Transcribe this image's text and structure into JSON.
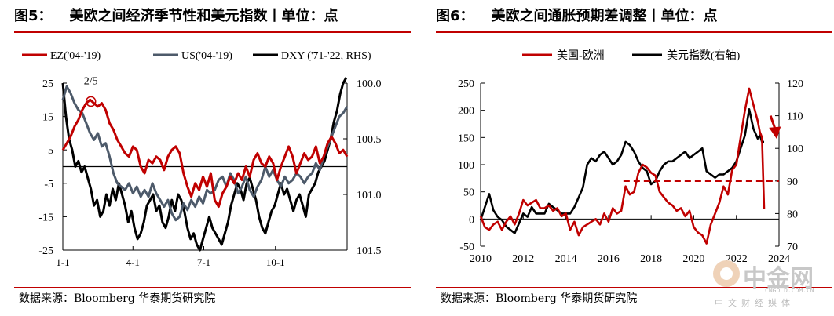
{
  "colors": {
    "red": "#c00000",
    "grey": "#4d5a6a",
    "black": "#000000"
  },
  "left": {
    "title_fig": "图5：",
    "title_text": "美欧之间经济季节性和美元指数丨单位：点",
    "source": "数据来源：Bloomberg  华泰期货研究院",
    "annotation": "2/5",
    "chart_data": {
      "type": "line",
      "legend": [
        "EZ('04-'19)",
        "US('04-'19)",
        "DXY ('71-'22, RHS)"
      ],
      "x_ticks": [
        "1-1",
        "4-1",
        "7-1",
        "10-1"
      ],
      "y_left": {
        "ticks": [
          "25",
          "15",
          "5",
          "-5",
          "-15",
          "-25"
        ],
        "range": [
          -25,
          25
        ]
      },
      "y_right": {
        "ticks": [
          "100.0",
          "100.5",
          "101.0",
          "101.5"
        ],
        "range": [
          100.0,
          101.5
        ],
        "inverted": true
      },
      "reference_line_y": 0,
      "series": [
        {
          "name": "EZ('04-'19)",
          "axis": "left",
          "color": "#c00000",
          "x": [
            0,
            5,
            10,
            15,
            20,
            25,
            30,
            35,
            40,
            45,
            50,
            55,
            60,
            65,
            70,
            75,
            80,
            85,
            90,
            95,
            100,
            105,
            110,
            115,
            120,
            125,
            130,
            135,
            140,
            145,
            150,
            155,
            160,
            165,
            170,
            175,
            180,
            185,
            190,
            195,
            200,
            205,
            210,
            215,
            220,
            225,
            230,
            235,
            240,
            245,
            250,
            255,
            260,
            265,
            270,
            275,
            280,
            285,
            290,
            295,
            300,
            305,
            310,
            315,
            320,
            325,
            330,
            335,
            340,
            345,
            350,
            355,
            360,
            365
          ],
          "y": [
            5,
            7,
            9,
            12,
            14,
            17,
            19,
            20,
            19,
            18,
            19,
            17,
            13,
            11,
            8,
            6,
            4,
            3,
            6,
            5,
            0,
            -2,
            2,
            1,
            3,
            2,
            -1,
            3,
            5,
            6,
            4,
            -2,
            -6,
            -9,
            -5,
            -7,
            -3,
            -6,
            -2,
            -10,
            -12,
            -8,
            -6,
            -3,
            -5,
            -2,
            -4,
            0,
            -3,
            2,
            4,
            1,
            0,
            3,
            1,
            -4,
            0,
            3,
            6,
            3,
            -2,
            1,
            4,
            2,
            3,
            6,
            1,
            3,
            7,
            9,
            7,
            4,
            5,
            3
          ]
        },
        {
          "name": "US('04-'19)",
          "axis": "left",
          "color": "#4d5a6a",
          "x": [
            0,
            5,
            10,
            15,
            20,
            25,
            30,
            35,
            40,
            45,
            50,
            55,
            60,
            65,
            70,
            75,
            80,
            85,
            90,
            95,
            100,
            105,
            110,
            115,
            120,
            125,
            130,
            135,
            140,
            145,
            150,
            155,
            160,
            165,
            170,
            175,
            180,
            185,
            190,
            195,
            200,
            205,
            210,
            215,
            220,
            225,
            230,
            235,
            240,
            245,
            250,
            255,
            260,
            265,
            270,
            275,
            280,
            285,
            290,
            295,
            300,
            305,
            310,
            315,
            320,
            325,
            330,
            335,
            340,
            345,
            350,
            355,
            360,
            365
          ],
          "y": [
            20,
            24,
            22,
            19,
            17,
            16,
            13,
            10,
            8,
            10,
            6,
            7,
            3,
            -2,
            -5,
            -6,
            -7,
            -5,
            -8,
            -6,
            -9,
            -7,
            -9,
            -5,
            -8,
            -10,
            -12,
            -10,
            -14,
            -16,
            -15,
            -11,
            -13,
            -10,
            -12,
            -9,
            -11,
            -7,
            -8,
            -7,
            -4,
            -3,
            -6,
            -2,
            -4,
            -8,
            -6,
            -3,
            -7,
            -9,
            -6,
            -4,
            0,
            -3,
            -1,
            -4,
            -6,
            -3,
            -5,
            -4,
            -2,
            -3,
            -5,
            -3,
            -2,
            1,
            -1,
            3,
            6,
            9,
            12,
            15,
            16,
            18
          ]
        },
        {
          "name": "DXY ('71-'22, RHS)",
          "axis": "right",
          "color": "#000000",
          "x": [
            0,
            4,
            8,
            12,
            16,
            20,
            24,
            28,
            32,
            36,
            40,
            44,
            48,
            52,
            56,
            60,
            64,
            68,
            72,
            76,
            80,
            84,
            88,
            92,
            96,
            100,
            104,
            108,
            112,
            116,
            120,
            124,
            128,
            132,
            136,
            140,
            144,
            148,
            152,
            156,
            160,
            164,
            168,
            172,
            176,
            180,
            184,
            188,
            192,
            196,
            200,
            204,
            208,
            212,
            216,
            220,
            224,
            228,
            232,
            236,
            240,
            244,
            248,
            252,
            256,
            260,
            264,
            268,
            272,
            276,
            280,
            284,
            288,
            292,
            296,
            300,
            304,
            308,
            312,
            316,
            320,
            324,
            328,
            332,
            336,
            340,
            344,
            348,
            352,
            356,
            360,
            364
          ],
          "y": [
            100.0,
            100.3,
            100.5,
            100.6,
            100.75,
            100.7,
            100.8,
            100.75,
            100.85,
            100.95,
            101.1,
            101.05,
            101.2,
            101.15,
            101.0,
            101.1,
            100.95,
            101.05,
            100.9,
            101.0,
            101.1,
            101.25,
            101.15,
            101.3,
            101.4,
            101.35,
            101.25,
            101.1,
            101.05,
            101.0,
            101.15,
            101.1,
            101.25,
            101.3,
            101.2,
            101.05,
            101.15,
            101.0,
            101.05,
            101.15,
            101.3,
            101.4,
            101.35,
            101.45,
            101.5,
            101.4,
            101.3,
            101.2,
            101.3,
            101.35,
            101.4,
            101.45,
            101.35,
            101.25,
            101.1,
            101.0,
            100.9,
            100.95,
            101.05,
            100.9,
            100.85,
            100.95,
            101.05,
            101.2,
            101.3,
            101.35,
            101.25,
            101.15,
            101.1,
            101.0,
            100.9,
            101.0,
            100.95,
            101.05,
            101.15,
            101.05,
            101.0,
            101.1,
            101.2,
            101.0,
            100.95,
            100.9,
            100.8,
            100.75,
            100.7,
            100.6,
            100.5,
            100.35,
            100.25,
            100.1,
            100.0,
            99.95
          ]
        }
      ]
    }
  },
  "right": {
    "title_fig": "图6：",
    "title_text": "美欧之间通胀预期差调整丨单位：点",
    "source": "数据来源：Bloomberg  华泰期货研究院",
    "chart_data": {
      "type": "line",
      "legend": [
        "美国-欧洲",
        "美元指数(右轴)"
      ],
      "x_ticks": [
        "2010",
        "2012",
        "2014",
        "2016",
        "2018",
        "2020",
        "2022",
        "2024"
      ],
      "x_range": [
        2010,
        2024
      ],
      "y_left": {
        "ticks": [
          "250",
          "200",
          "150",
          "100",
          "50",
          "0",
          "-50"
        ],
        "range": [
          -50,
          250
        ]
      },
      "y_right": {
        "ticks": [
          "120",
          "110",
          "100",
          "90",
          "80",
          "70"
        ],
        "range": [
          70,
          120
        ]
      },
      "reference_line_y_right": 90,
      "series": [
        {
          "name": "美国-欧洲",
          "axis": "left",
          "color": "#c00000",
          "x": [
            2010.0,
            2010.2,
            2010.4,
            2010.6,
            2010.8,
            2011.0,
            2011.2,
            2011.4,
            2011.6,
            2011.8,
            2012.0,
            2012.2,
            2012.4,
            2012.6,
            2012.8,
            2013.0,
            2013.2,
            2013.4,
            2013.6,
            2013.8,
            2014.0,
            2014.2,
            2014.4,
            2014.6,
            2014.8,
            2015.0,
            2015.2,
            2015.4,
            2015.6,
            2015.8,
            2016.0,
            2016.2,
            2016.4,
            2016.6,
            2016.8,
            2017.0,
            2017.2,
            2017.4,
            2017.6,
            2017.8,
            2018.0,
            2018.2,
            2018.4,
            2018.6,
            2018.8,
            2019.0,
            2019.2,
            2019.4,
            2019.6,
            2019.8,
            2020.0,
            2020.2,
            2020.4,
            2020.6,
            2020.8,
            2021.0,
            2021.2,
            2021.4,
            2021.6,
            2021.8,
            2022.0,
            2022.2,
            2022.4,
            2022.6,
            2022.8,
            2023.0,
            2023.1,
            2023.2,
            2023.3
          ],
          "y": [
            5,
            -15,
            -20,
            -10,
            -5,
            -20,
            -5,
            5,
            -10,
            10,
            35,
            25,
            30,
            35,
            20,
            20,
            25,
            15,
            20,
            5,
            10,
            -20,
            -5,
            -30,
            -15,
            -10,
            -5,
            0,
            -10,
            10,
            -5,
            20,
            10,
            15,
            60,
            45,
            50,
            85,
            100,
            95,
            85,
            80,
            50,
            40,
            30,
            25,
            15,
            20,
            5,
            15,
            -15,
            -25,
            -30,
            -45,
            -10,
            10,
            30,
            60,
            45,
            90,
            100,
            150,
            200,
            240,
            210,
            180,
            160,
            150,
            18
          ]
        },
        {
          "name": "美元指数(右轴)",
          "axis": "right",
          "color": "#000000",
          "x": [
            2010.0,
            2010.2,
            2010.4,
            2010.6,
            2010.8,
            2011.0,
            2011.2,
            2011.4,
            2011.6,
            2011.8,
            2012.0,
            2012.2,
            2012.4,
            2012.6,
            2012.8,
            2013.0,
            2013.2,
            2013.4,
            2013.6,
            2013.8,
            2014.0,
            2014.2,
            2014.4,
            2014.6,
            2014.8,
            2015.0,
            2015.2,
            2015.4,
            2015.6,
            2015.8,
            2016.0,
            2016.2,
            2016.4,
            2016.6,
            2016.8,
            2017.0,
            2017.2,
            2017.4,
            2017.6,
            2017.8,
            2018.0,
            2018.2,
            2018.4,
            2018.6,
            2018.8,
            2019.0,
            2019.2,
            2019.4,
            2019.6,
            2019.8,
            2020.0,
            2020.2,
            2020.4,
            2020.6,
            2020.8,
            2021.0,
            2021.2,
            2021.4,
            2021.6,
            2021.8,
            2022.0,
            2022.2,
            2022.4,
            2022.6,
            2022.8,
            2023.0,
            2023.1,
            2023.2,
            2023.3
          ],
          "y": [
            78,
            82,
            86,
            81,
            79,
            78,
            76,
            75,
            74,
            77,
            80,
            79,
            82,
            80,
            80,
            80,
            83,
            82,
            81,
            80,
            80,
            80,
            82,
            85,
            88,
            95,
            97,
            96,
            98,
            99,
            97,
            95,
            96,
            98,
            102,
            101,
            99,
            96,
            94,
            93,
            89,
            90,
            93,
            95,
            96,
            96,
            97,
            98,
            99,
            97,
            98,
            99,
            100,
            93,
            92,
            91,
            92,
            92,
            93,
            94,
            96,
            100,
            104,
            112,
            106,
            103,
            104,
            102,
            102
          ]
        }
      ]
    }
  }
}
